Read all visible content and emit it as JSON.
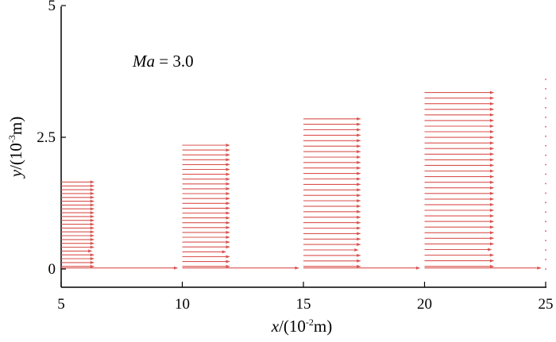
{
  "chart_data": {
    "type": "vector-field",
    "annotation": {
      "var": "Ma",
      "eq": " = 3.0"
    },
    "xlabel": {
      "var": "x",
      "pre": "/(10",
      "exp": "-2",
      "post": "m)"
    },
    "ylabel": {
      "var": "y",
      "pre": "/(10",
      "exp": "-3",
      "post": "m)"
    },
    "xlim": [
      5,
      25
    ],
    "ylim": [
      -0.3,
      5
    ],
    "xticks": [
      "5",
      "10",
      "15",
      "20",
      "25"
    ],
    "yticks": [
      "0",
      "2.5",
      "5"
    ],
    "arrow_color": "#d9534f",
    "arrow_scale_xunits": 5,
    "profiles": [
      {
        "x0": 5,
        "y_min": 0.05,
        "y_max": 1.65,
        "count": 23,
        "delta": 1.35
      },
      {
        "x0": 10,
        "y_min": 0.05,
        "y_max": 2.35,
        "count": 26,
        "delta": 1.95
      },
      {
        "x0": 15,
        "y_min": 0.05,
        "y_max": 2.85,
        "count": 28,
        "delta": 2.35
      },
      {
        "x0": 20,
        "y_min": 0.05,
        "y_max": 3.35,
        "count": 32,
        "delta": 2.85
      }
    ],
    "right_marker_x": 25,
    "right_marker_y": [
      0.0,
      3.7
    ]
  }
}
